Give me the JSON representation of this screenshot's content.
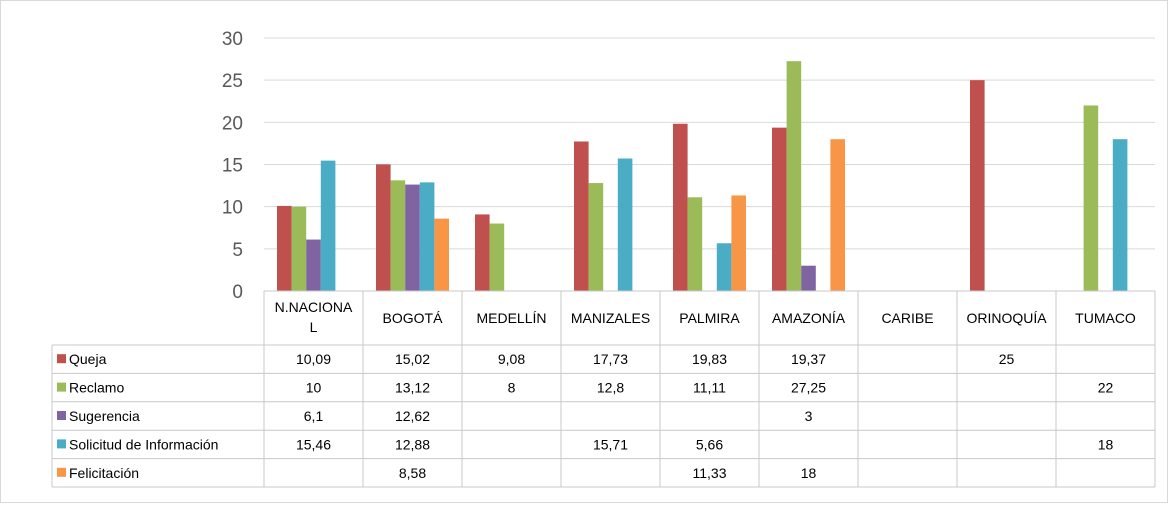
{
  "chart_data": {
    "type": "bar",
    "categories": [
      "N.NACIONAL",
      "BOGOTÁ",
      "MEDELLÍN",
      "MANIZALES",
      "PALMIRA",
      "AMAZONÍA",
      "CARIBE",
      "ORINOQUÍA",
      "TUMACO"
    ],
    "category_display": [
      [
        "N.NACIONA",
        "L"
      ],
      [
        "BOGOTÁ"
      ],
      [
        "MEDELLÍN"
      ],
      [
        "MANIZALES"
      ],
      [
        "PALMIRA"
      ],
      [
        "AMAZONÍA"
      ],
      [
        "CARIBE"
      ],
      [
        "ORINOQUÍA"
      ],
      [
        "TUMACO"
      ]
    ],
    "series": [
      {
        "name": "Queja",
        "color": "#c0504d",
        "values": [
          10.09,
          15.02,
          9.08,
          17.73,
          19.83,
          19.37,
          null,
          25,
          null
        ],
        "labels": [
          "10,09",
          "15,02",
          "9,08",
          "17,73",
          "19,83",
          "19,37",
          "",
          "25",
          ""
        ]
      },
      {
        "name": "Reclamo",
        "color": "#9bbb59",
        "values": [
          10,
          13.12,
          8,
          12.8,
          11.11,
          27.25,
          null,
          null,
          22
        ],
        "labels": [
          "10",
          "13,12",
          "8",
          "12,8",
          "11,11",
          "27,25",
          "",
          "",
          "22"
        ]
      },
      {
        "name": "Sugerencia",
        "color": "#8064a2",
        "values": [
          6.1,
          12.62,
          null,
          null,
          null,
          3,
          null,
          null,
          null
        ],
        "labels": [
          "6,1",
          "12,62",
          "",
          "",
          "",
          "3",
          "",
          "",
          ""
        ]
      },
      {
        "name": "Solicitud de Información",
        "color": "#4bacc6",
        "values": [
          15.46,
          12.88,
          null,
          15.71,
          5.66,
          null,
          null,
          null,
          18
        ],
        "labels": [
          "15,46",
          "12,88",
          "",
          "15,71",
          "5,66",
          "",
          "",
          "",
          "18"
        ]
      },
      {
        "name": "Felicitación",
        "color": "#f79646",
        "values": [
          null,
          8.58,
          null,
          null,
          11.33,
          18,
          null,
          null,
          null
        ],
        "labels": [
          "",
          "8,58",
          "",
          "",
          "11,33",
          "18",
          "",
          "",
          ""
        ]
      }
    ],
    "y_ticks": [
      "0",
      "5",
      "10",
      "15",
      "20",
      "25",
      "30"
    ],
    "ylim": [
      0,
      30
    ],
    "grid": true,
    "legend": "data-table"
  }
}
